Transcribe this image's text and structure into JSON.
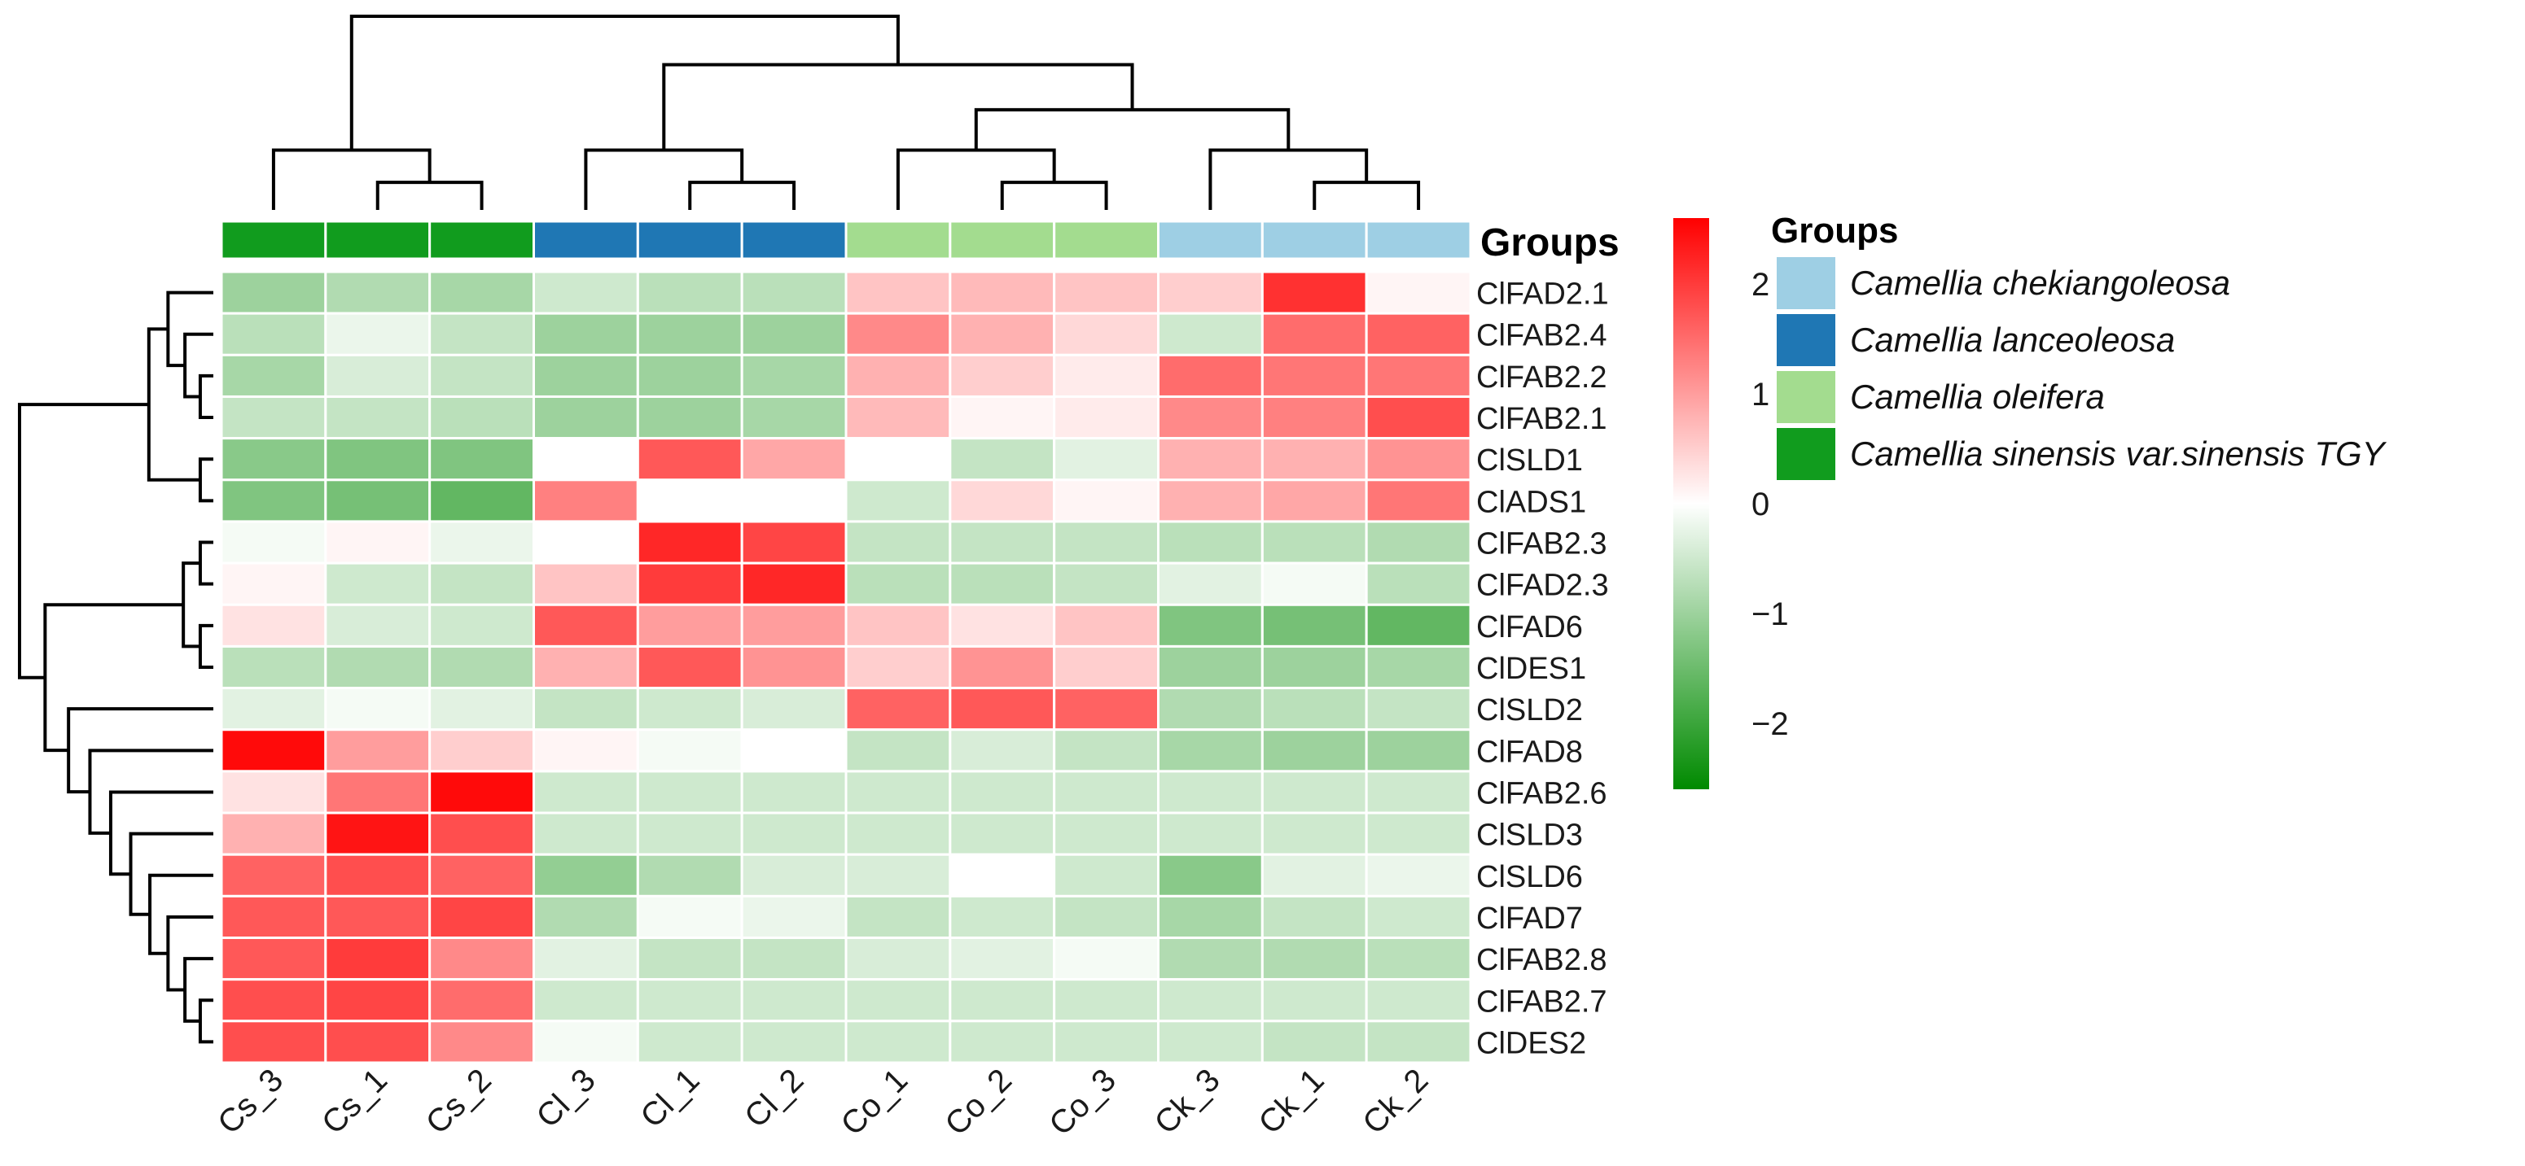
{
  "chart_data": {
    "type": "heatmap",
    "columns": [
      "Cs_3",
      "Cs_1",
      "Cs_2",
      "Cl_3",
      "Cl_1",
      "Cl_2",
      "Co_1",
      "Co_2",
      "Co_3",
      "Ck_3",
      "Ck_1",
      "Ck_2"
    ],
    "column_groups": [
      "Camellia sinensis var.sinensis TGY",
      "Camellia sinensis var.sinensis TGY",
      "Camellia sinensis var.sinensis TGY",
      "Camellia lanceoleosa",
      "Camellia lanceoleosa",
      "Camellia lanceoleosa",
      "Camellia oleifera",
      "Camellia oleifera",
      "Camellia oleifera",
      "Camellia chekiangoleosa",
      "Camellia chekiangoleosa",
      "Camellia chekiangoleosa"
    ],
    "rows": [
      "ClFAD2.1",
      "ClFAB2.4",
      "ClFAB2.2",
      "ClFAB2.1",
      "ClSLD1",
      "ClADS1",
      "ClFAB2.3",
      "ClFAD2.3",
      "ClFAD6",
      "ClDES1",
      "ClSLD2",
      "ClFAD8",
      "ClFAB2.6",
      "ClSLD3",
      "ClSLD6",
      "ClFAD7",
      "ClFAB2.8",
      "ClFAB2.7",
      "ClDES2"
    ],
    "values": [
      [
        -1.0,
        -0.8,
        -0.9,
        -0.5,
        -0.7,
        -0.7,
        0.6,
        0.7,
        0.6,
        0.5,
        2.1,
        0.1
      ],
      [
        -0.7,
        -0.2,
        -0.6,
        -1.0,
        -1.0,
        -1.0,
        1.2,
        0.8,
        0.4,
        -0.5,
        1.5,
        1.6
      ],
      [
        -0.9,
        -0.4,
        -0.6,
        -1.0,
        -1.0,
        -0.9,
        0.8,
        0.5,
        0.2,
        1.5,
        1.4,
        1.4
      ],
      [
        -0.6,
        -0.6,
        -0.7,
        -1.0,
        -1.0,
        -0.9,
        0.7,
        0.1,
        0.2,
        1.2,
        1.3,
        1.8
      ],
      [
        -1.2,
        -1.3,
        -1.3,
        0.0,
        1.7,
        0.9,
        0.0,
        -0.6,
        -0.3,
        0.8,
        0.8,
        1.1
      ],
      [
        -1.3,
        -1.4,
        -1.6,
        1.3,
        0.0,
        0.0,
        -0.5,
        0.4,
        0.1,
        0.8,
        0.9,
        1.4
      ],
      [
        -0.1,
        0.1,
        -0.2,
        0.0,
        2.2,
        1.9,
        -0.6,
        -0.6,
        -0.6,
        -0.7,
        -0.7,
        -0.8
      ],
      [
        0.1,
        -0.5,
        -0.6,
        0.6,
        2.0,
        2.2,
        -0.7,
        -0.7,
        -0.6,
        -0.3,
        -0.1,
        -0.7
      ],
      [
        0.3,
        -0.4,
        -0.5,
        1.7,
        1.0,
        1.0,
        0.6,
        0.3,
        0.6,
        -1.3,
        -1.4,
        -1.6
      ],
      [
        -0.7,
        -0.8,
        -0.8,
        0.8,
        1.7,
        1.1,
        0.5,
        1.1,
        0.5,
        -1.0,
        -1.0,
        -0.9
      ],
      [
        -0.3,
        -0.1,
        -0.3,
        -0.6,
        -0.5,
        -0.4,
        1.6,
        1.7,
        1.6,
        -0.8,
        -0.7,
        -0.6
      ],
      [
        2.5,
        1.0,
        0.5,
        0.1,
        -0.1,
        0.0,
        -0.6,
        -0.4,
        -0.6,
        -0.9,
        -1.0,
        -1.0
      ],
      [
        0.3,
        1.4,
        2.5,
        -0.5,
        -0.5,
        -0.5,
        -0.5,
        -0.5,
        -0.5,
        -0.5,
        -0.5,
        -0.5
      ],
      [
        0.8,
        2.4,
        1.8,
        -0.5,
        -0.5,
        -0.5,
        -0.5,
        -0.5,
        -0.5,
        -0.5,
        -0.5,
        -0.5
      ],
      [
        1.6,
        1.8,
        1.6,
        -1.1,
        -0.8,
        -0.4,
        -0.4,
        0.0,
        -0.5,
        -1.2,
        -0.3,
        -0.2
      ],
      [
        1.7,
        1.7,
        1.9,
        -0.8,
        -0.1,
        -0.2,
        -0.6,
        -0.5,
        -0.6,
        -0.9,
        -0.6,
        -0.5
      ],
      [
        1.7,
        2.0,
        1.2,
        -0.3,
        -0.6,
        -0.6,
        -0.4,
        -0.3,
        -0.1,
        -0.8,
        -0.8,
        -0.7
      ],
      [
        1.8,
        1.9,
        1.5,
        -0.5,
        -0.5,
        -0.5,
        -0.5,
        -0.5,
        -0.5,
        -0.5,
        -0.5,
        -0.5
      ],
      [
        1.8,
        1.8,
        1.2,
        -0.1,
        -0.5,
        -0.5,
        -0.5,
        -0.5,
        -0.5,
        -0.5,
        -0.6,
        -0.6
      ]
    ],
    "annotation_title": "Groups",
    "legend": {
      "title": "Groups",
      "entries": [
        {
          "name": "Camellia chekiangoleosa",
          "color": "#9ecfe4"
        },
        {
          "name": "Camellia lanceoleosa",
          "color": "#1f77b4"
        },
        {
          "name": "Camellia oleifera",
          "color": "#a3dc8f"
        },
        {
          "name": "Camellia sinensis var.sinensis TGY",
          "color": "#119c1e"
        }
      ]
    },
    "group_colors": {
      "Camellia chekiangoleosa": "#9ecfe4",
      "Camellia lanceoleosa": "#1f77b4",
      "Camellia oleifera": "#a3dc8f",
      "Camellia sinensis var.sinensis TGY": "#119c1e"
    },
    "colorscale": {
      "ticks": [
        2,
        1,
        0,
        -1,
        -2
      ],
      "tick_labels": [
        "2",
        "1",
        "0",
        "−1",
        "−2"
      ],
      "range": [
        -2.6,
        2.6
      ],
      "colors": {
        "max": "#ff0000",
        "mid": "#ffffff",
        "min": "#008a00"
      }
    },
    "col_dendrogram": [
      [
        1,
        2
      ],
      [
        0,
        -1
      ],
      [
        4,
        5
      ],
      [
        3,
        -3
      ],
      [
        7,
        8
      ],
      [
        6,
        -5
      ],
      [
        10,
        11
      ],
      [
        9,
        -7
      ],
      [
        -6,
        -8
      ],
      [
        -4,
        -9
      ],
      [
        -2,
        -10
      ]
    ],
    "row_dendrogram": [
      [
        2,
        3
      ],
      [
        1,
        -1
      ],
      [
        0,
        -2
      ],
      [
        4,
        5
      ],
      [
        -3,
        -4
      ],
      [
        6,
        7
      ],
      [
        8,
        9
      ],
      [
        -6,
        -7
      ],
      [
        17,
        18
      ],
      [
        16,
        -9
      ],
      [
        15,
        -10
      ],
      [
        14,
        -11
      ],
      [
        13,
        -12
      ],
      [
        12,
        -13
      ],
      [
        11,
        -14
      ],
      [
        10,
        -15
      ],
      [
        -8,
        -16
      ],
      [
        -5,
        -17
      ]
    ]
  }
}
